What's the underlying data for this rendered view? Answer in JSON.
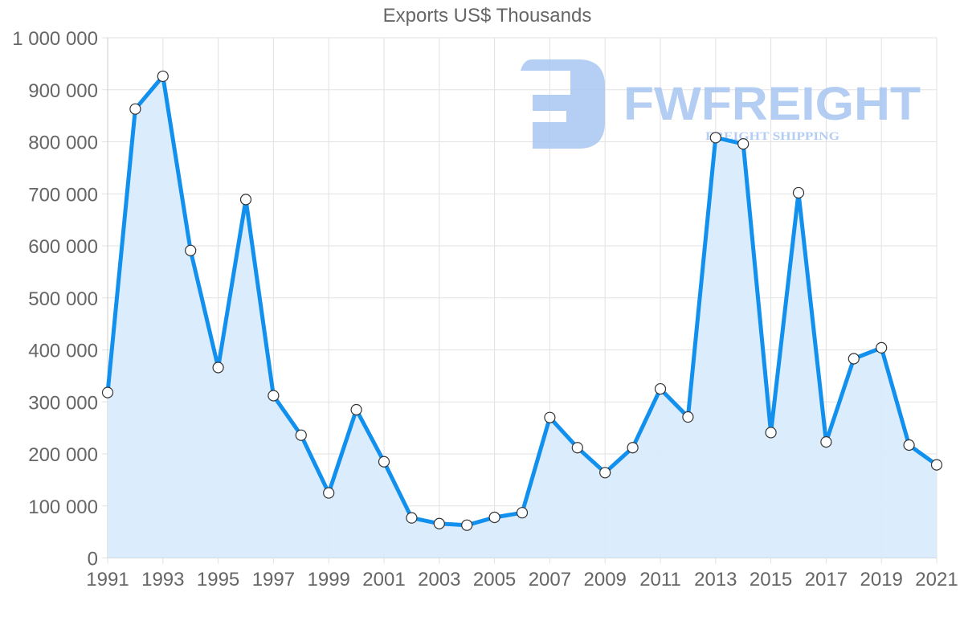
{
  "chart_data": {
    "type": "area",
    "title": "Exports US$ Thousands",
    "xlabel": "",
    "ylabel": "",
    "categories": [
      "1991",
      "1992",
      "1993",
      "1994",
      "1995",
      "1996",
      "1997",
      "1998",
      "1999",
      "2000",
      "2001",
      "2002",
      "2003",
      "2004",
      "2005",
      "2006",
      "2007",
      "2008",
      "2009",
      "2010",
      "2011",
      "2012",
      "2013",
      "2014",
      "2015",
      "2016",
      "2017",
      "2018",
      "2019",
      "2020",
      "2021"
    ],
    "series": [
      {
        "name": "Exports US$ Thousands",
        "values": [
          318000,
          863000,
          926000,
          591000,
          366000,
          689000,
          312000,
          236000,
          125000,
          285000,
          185000,
          77000,
          66000,
          63000,
          78000,
          87000,
          270000,
          212000,
          164000,
          212000,
          325000,
          271000,
          808000,
          796000,
          241000,
          702000,
          223000,
          383000,
          404000,
          217000,
          179000
        ]
      }
    ],
    "ylim": [
      0,
      1000000
    ],
    "y_ticks": [
      0,
      100000,
      200000,
      300000,
      400000,
      500000,
      600000,
      700000,
      800000,
      900000,
      1000000
    ],
    "y_tick_labels": [
      "0",
      "100 000",
      "200 000",
      "300 000",
      "400 000",
      "500 000",
      "600 000",
      "700 000",
      "800 000",
      "900 000",
      "1 000 000"
    ],
    "x_tick_labels": [
      "1991",
      "1993",
      "1995",
      "1997",
      "1999",
      "2001",
      "2003",
      "2005",
      "2007",
      "2009",
      "2011",
      "2013",
      "2015",
      "2017",
      "2019",
      "2021"
    ],
    "grid": true,
    "legend": "none"
  },
  "style": {
    "line_color": "#1290ee",
    "fill_color": "#d9ebfc",
    "marker_fill": "#ffffff",
    "marker_stroke": "#333333",
    "grid_color": "#e2e2e2",
    "axis_label_color": "#666666",
    "watermark_color": "#a8c5f1"
  },
  "watermark": {
    "brand": "FWFREIGHT",
    "tagline": "FREIGHT SHIPPING",
    "icon": "fwfreight-logo-icon"
  }
}
